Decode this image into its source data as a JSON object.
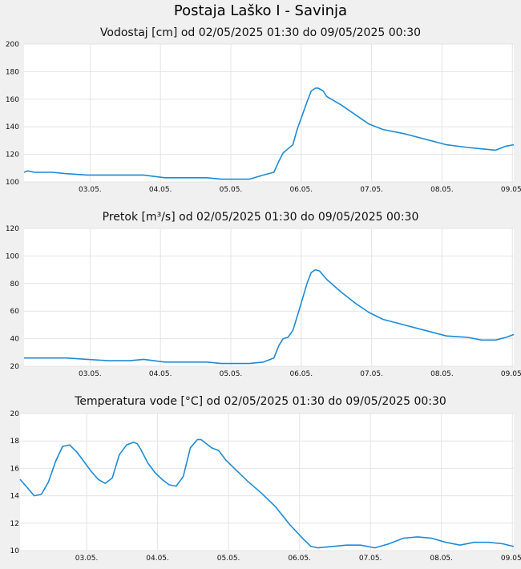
{
  "page": {
    "title": "Postaja Laško I - Savinja"
  },
  "chart_data": [
    {
      "type": "line",
      "title": "Vodostaj [cm] od 02/05/2025 01:30 do 09/05/2025 00:30",
      "ylim": [
        100,
        200
      ],
      "yticks": [
        100,
        120,
        140,
        160,
        180,
        200
      ],
      "xlim": [
        0,
        6.958
      ],
      "xticks": [
        {
          "x": 0.938,
          "label": "03.05."
        },
        {
          "x": 1.938,
          "label": "04.05."
        },
        {
          "x": 2.938,
          "label": "05.05."
        },
        {
          "x": 3.938,
          "label": "06.05."
        },
        {
          "x": 4.938,
          "label": "07.05."
        },
        {
          "x": 5.938,
          "label": "08.05."
        },
        {
          "x": 6.938,
          "label": "09.05."
        }
      ],
      "grid": true,
      "color": "#1f8ad6",
      "series": [
        {
          "x": [
            0,
            0.05,
            0.15,
            0.4,
            0.6,
            0.9,
            1.2,
            1.5,
            1.7,
            2.0,
            2.3,
            2.6,
            2.8,
            3.0,
            3.2,
            3.4,
            3.55,
            3.62,
            3.68,
            3.75,
            3.82,
            3.88,
            3.95,
            4.02,
            4.08,
            4.14,
            4.18,
            4.25,
            4.3,
            4.5,
            4.7,
            4.9,
            5.1,
            5.4,
            5.7,
            6.0,
            6.3,
            6.5,
            6.7,
            6.85,
            6.958
          ],
          "y": [
            107,
            108,
            107,
            107,
            106,
            105,
            105,
            105,
            105,
            103,
            103,
            103,
            102,
            102,
            102,
            105,
            107,
            115,
            121,
            124,
            127,
            138,
            148,
            158,
            166,
            168,
            168,
            166,
            162,
            156,
            149,
            142,
            138,
            135,
            131,
            127,
            125,
            124,
            123,
            126,
            127
          ]
        }
      ]
    },
    {
      "type": "line",
      "title": "Pretok [m³/s] od 02/05/2025 01:30 do 09/05/2025 00:30",
      "ylim": [
        20,
        120
      ],
      "yticks": [
        20,
        40,
        60,
        80,
        100,
        120
      ],
      "xlim": [
        0,
        6.958
      ],
      "xticks": [
        {
          "x": 0.938,
          "label": "03.05."
        },
        {
          "x": 1.938,
          "label": "04.05."
        },
        {
          "x": 2.938,
          "label": "05.05."
        },
        {
          "x": 3.938,
          "label": "06.05."
        },
        {
          "x": 4.938,
          "label": "07.05."
        },
        {
          "x": 5.938,
          "label": "08.05."
        },
        {
          "x": 6.938,
          "label": "09.05."
        }
      ],
      "grid": true,
      "color": "#1f8ad6",
      "series": [
        {
          "x": [
            0,
            0.3,
            0.6,
            0.9,
            1.2,
            1.5,
            1.7,
            2.0,
            2.3,
            2.6,
            2.8,
            3.0,
            3.2,
            3.4,
            3.55,
            3.62,
            3.68,
            3.75,
            3.82,
            3.88,
            3.95,
            4.02,
            4.08,
            4.14,
            4.2,
            4.25,
            4.3,
            4.5,
            4.7,
            4.9,
            5.1,
            5.4,
            5.7,
            6.0,
            6.3,
            6.5,
            6.7,
            6.85,
            6.958
          ],
          "y": [
            26,
            26,
            26,
            25,
            24,
            24,
            25,
            23,
            23,
            23,
            22,
            22,
            22,
            23,
            26,
            35,
            40,
            41,
            46,
            56,
            68,
            80,
            88,
            90,
            89,
            86,
            83,
            74,
            66,
            59,
            54,
            50,
            46,
            42,
            41,
            39,
            39,
            41,
            43
          ]
        }
      ]
    },
    {
      "type": "line",
      "title": "Temperatura vode [°C] od 02/05/2025 01:30 do 09/05/2025 00:30",
      "ylim": [
        10,
        20
      ],
      "yticks": [
        10,
        12,
        14,
        16,
        18,
        20
      ],
      "xlim": [
        0,
        6.958
      ],
      "xticks": [
        {
          "x": 0.938,
          "label": "03.05."
        },
        {
          "x": 1.938,
          "label": "04.05."
        },
        {
          "x": 2.938,
          "label": "05.05."
        },
        {
          "x": 3.938,
          "label": "06.05."
        },
        {
          "x": 4.938,
          "label": "07.05."
        },
        {
          "x": 5.938,
          "label": "08.05."
        },
        {
          "x": 6.938,
          "label": "09.05."
        }
      ],
      "grid": true,
      "color": "#1f8ad6",
      "series": [
        {
          "x": [
            0,
            0.1,
            0.2,
            0.3,
            0.4,
            0.5,
            0.6,
            0.7,
            0.8,
            0.9,
            1.0,
            1.1,
            1.2,
            1.3,
            1.4,
            1.5,
            1.6,
            1.65,
            1.7,
            1.8,
            1.9,
            2.0,
            2.1,
            2.2,
            2.3,
            2.4,
            2.5,
            2.55,
            2.6,
            2.7,
            2.8,
            2.9,
            3.0,
            3.2,
            3.4,
            3.6,
            3.8,
            4.0,
            4.1,
            4.2,
            4.4,
            4.6,
            4.8,
            5.0,
            5.2,
            5.4,
            5.6,
            5.8,
            6.0,
            6.2,
            6.4,
            6.6,
            6.8,
            6.958
          ],
          "y": [
            15.2,
            14.6,
            14.0,
            14.1,
            15.0,
            16.5,
            17.6,
            17.7,
            17.2,
            16.5,
            15.8,
            15.2,
            14.9,
            15.3,
            17.0,
            17.7,
            17.9,
            17.8,
            17.4,
            16.4,
            15.7,
            15.2,
            14.8,
            14.7,
            15.4,
            17.5,
            18.1,
            18.1,
            17.9,
            17.5,
            17.3,
            16.6,
            16.1,
            15.1,
            14.2,
            13.2,
            11.9,
            10.8,
            10.3,
            10.2,
            10.3,
            10.4,
            10.4,
            10.2,
            10.5,
            10.9,
            11.0,
            10.9,
            10.6,
            10.4,
            10.6,
            10.6,
            10.5,
            10.3
          ]
        }
      ]
    }
  ]
}
